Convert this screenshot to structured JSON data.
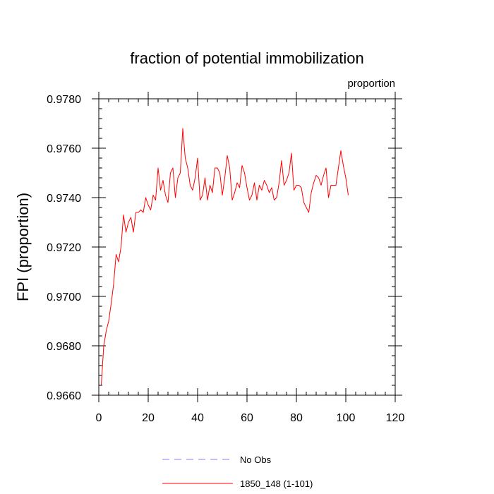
{
  "chart_data": {
    "type": "line",
    "title": "fraction of potential immobilization",
    "units_label": "proportion",
    "xlabel": "",
    "ylabel": "FPI  (proportion)",
    "xlim": [
      0,
      120
    ],
    "ylim": [
      0.966,
      0.978
    ],
    "xticks": [
      0,
      20,
      40,
      60,
      80,
      100,
      120
    ],
    "xtick_labels": [
      "0",
      "20",
      "40",
      "60",
      "80",
      "100",
      "120"
    ],
    "yticks": [
      0.966,
      0.968,
      0.97,
      0.972,
      0.974,
      0.976,
      0.978
    ],
    "ytick_labels": [
      "0.9660",
      "0.9680",
      "0.9700",
      "0.9720",
      "0.9740",
      "0.9760",
      "0.9780"
    ],
    "grid": false,
    "legend_position": "bottom",
    "legend": [
      {
        "label": "No Obs",
        "color": "#8080ff",
        "style": "dashed"
      },
      {
        "label": "1850_148 (1-101)",
        "color": "#ff0000",
        "style": "solid"
      }
    ],
    "series": [
      {
        "name": "1850_148 (1-101)",
        "color": "#ff0000",
        "x": [
          1,
          2,
          3,
          4,
          5,
          6,
          7,
          8,
          9,
          10,
          11,
          12,
          13,
          14,
          15,
          16,
          17,
          18,
          19,
          20,
          21,
          22,
          23,
          24,
          25,
          26,
          27,
          28,
          29,
          30,
          31,
          32,
          33,
          34,
          35,
          36,
          37,
          38,
          39,
          40,
          41,
          42,
          43,
          44,
          45,
          46,
          47,
          48,
          49,
          50,
          51,
          52,
          53,
          54,
          55,
          56,
          57,
          58,
          59,
          60,
          61,
          62,
          63,
          64,
          65,
          66,
          67,
          68,
          69,
          70,
          71,
          72,
          73,
          74,
          75,
          76,
          77,
          78,
          79,
          80,
          81,
          82,
          83,
          84,
          85,
          86,
          87,
          88,
          89,
          90,
          91,
          92,
          93,
          94,
          95,
          96,
          97,
          98,
          99,
          100,
          101
        ],
        "y": [
          0.9664,
          0.968,
          0.9686,
          0.969,
          0.9697,
          0.9705,
          0.9717,
          0.9714,
          0.972,
          0.9733,
          0.9726,
          0.973,
          0.9732,
          0.9726,
          0.9734,
          0.9734,
          0.9735,
          0.9734,
          0.974,
          0.9737,
          0.9735,
          0.9741,
          0.9739,
          0.9752,
          0.9743,
          0.9747,
          0.9741,
          0.9738,
          0.975,
          0.9752,
          0.974,
          0.9748,
          0.975,
          0.9768,
          0.9756,
          0.9752,
          0.9745,
          0.9743,
          0.9748,
          0.9756,
          0.9739,
          0.9741,
          0.9748,
          0.9739,
          0.9745,
          0.9742,
          0.9752,
          0.9752,
          0.975,
          0.9741,
          0.9748,
          0.9757,
          0.9752,
          0.9739,
          0.9742,
          0.9746,
          0.9744,
          0.9753,
          0.975,
          0.9744,
          0.9739,
          0.9741,
          0.9746,
          0.9739,
          0.9745,
          0.9743,
          0.9747,
          0.9745,
          0.9742,
          0.9744,
          0.9739,
          0.974,
          0.9746,
          0.9755,
          0.9745,
          0.9747,
          0.975,
          0.9758,
          0.9743,
          0.9745,
          0.9745,
          0.9744,
          0.9738,
          0.9736,
          0.9734,
          0.9742,
          0.9746,
          0.9749,
          0.9748,
          0.9745,
          0.9749,
          0.9752,
          0.974,
          0.9745,
          0.9745,
          0.9745,
          0.9752,
          0.9759,
          0.9753,
          0.9748,
          0.9741
        ]
      }
    ]
  }
}
